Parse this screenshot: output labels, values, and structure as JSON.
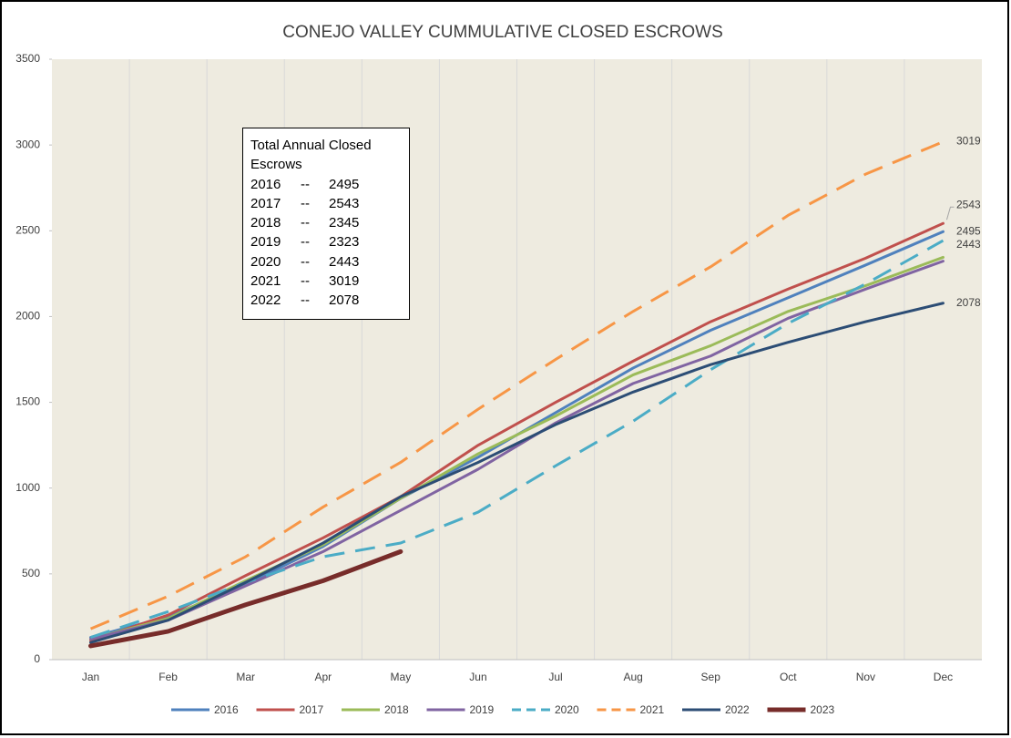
{
  "chart_data": {
    "type": "line",
    "title": "CONEJO VALLEY CUMMULATIVE CLOSED ESCROWS",
    "categories": [
      "Jan",
      "Feb",
      "Mar",
      "Apr",
      "May",
      "Jun",
      "Jul",
      "Aug",
      "Sep",
      "Oct",
      "Nov",
      "Dec"
    ],
    "ylim": [
      0,
      3500
    ],
    "yticks": [
      0,
      500,
      1000,
      1500,
      2000,
      2500,
      3000,
      3500
    ],
    "series": [
      {
        "name": "2016",
        "color": "#4f81bd",
        "dashed": false,
        "values": [
          130,
          250,
          440,
          660,
          940,
          1180,
          1440,
          1700,
          1920,
          2110,
          2300,
          2495
        ]
      },
      {
        "name": "2017",
        "color": "#c0504d",
        "dashed": false,
        "values": [
          110,
          260,
          490,
          710,
          950,
          1250,
          1500,
          1740,
          1970,
          2160,
          2340,
          2543
        ]
      },
      {
        "name": "2018",
        "color": "#9bbb59",
        "dashed": false,
        "values": [
          120,
          240,
          460,
          670,
          940,
          1200,
          1420,
          1660,
          1830,
          2030,
          2180,
          2345
        ]
      },
      {
        "name": "2019",
        "color": "#8064a2",
        "dashed": false,
        "values": [
          120,
          230,
          430,
          630,
          870,
          1110,
          1380,
          1610,
          1770,
          1990,
          2160,
          2323
        ]
      },
      {
        "name": "2020",
        "color": "#4bacc6",
        "dashed": true,
        "values": [
          130,
          280,
          450,
          600,
          680,
          860,
          1130,
          1390,
          1690,
          1960,
          2190,
          2443
        ]
      },
      {
        "name": "2021",
        "color": "#f79646",
        "dashed": true,
        "values": [
          180,
          370,
          600,
          890,
          1150,
          1460,
          1750,
          2030,
          2290,
          2590,
          2830,
          3019
        ]
      },
      {
        "name": "2022",
        "color": "#2c4d75",
        "dashed": false,
        "values": [
          100,
          230,
          450,
          680,
          950,
          1150,
          1370,
          1560,
          1720,
          1850,
          1970,
          2078
        ]
      },
      {
        "name": "2023",
        "color": "#772c2a",
        "dashed": false,
        "thick": true,
        "values": [
          80,
          165,
          320,
          460,
          630,
          null,
          null,
          null,
          null,
          null,
          null,
          null
        ]
      }
    ],
    "end_labels": [
      0,
      1,
      4,
      5,
      6
    ],
    "end_labels_alt": [
      2,
      3
    ],
    "annotation": {
      "title": "Total Annual Closed Escrows",
      "rows": [
        [
          "2016",
          "--",
          "2495"
        ],
        [
          "2017",
          "--",
          "2543"
        ],
        [
          "2018",
          "--",
          "2345"
        ],
        [
          "2019",
          "--",
          "2323"
        ],
        [
          "2020",
          "--",
          "2443"
        ],
        [
          "2021",
          "--",
          "3019"
        ],
        [
          "2022",
          "--",
          "2078"
        ]
      ]
    }
  }
}
